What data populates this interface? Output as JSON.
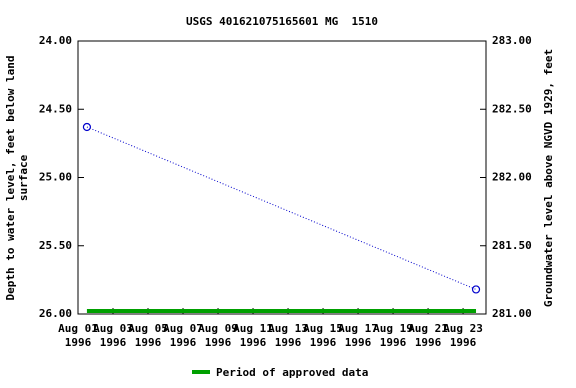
{
  "chart_data": {
    "type": "line",
    "title": "USGS 401621075165601 MG  1510",
    "ylabel": "Depth to water level, feet below land\nsurface",
    "y2label": "Groundwater level above NGVD 1929, feet",
    "x": [
      1.51,
      23.74
    ],
    "series": [
      {
        "name": "Depth to water level",
        "color": "#0000cc",
        "values": [
          24.63,
          25.82
        ]
      }
    ],
    "approved": {
      "name": "Period of approved data",
      "color": "#00a000",
      "x": [
        1.51,
        23.74
      ]
    },
    "xlim": [
      1,
      24.31
    ],
    "xticks": [
      {
        "value": 1,
        "label": "Aug 01\n1996"
      },
      {
        "value": 3,
        "label": "Aug 03\n1996"
      },
      {
        "value": 5,
        "label": "Aug 05\n1996"
      },
      {
        "value": 7,
        "label": "Aug 07\n1996"
      },
      {
        "value": 9,
        "label": "Aug 09\n1996"
      },
      {
        "value": 11,
        "label": "Aug 11\n1996"
      },
      {
        "value": 13,
        "label": "Aug 13\n1996"
      },
      {
        "value": 15,
        "label": "Aug 15\n1996"
      },
      {
        "value": 17,
        "label": "Aug 17\n1996"
      },
      {
        "value": 19,
        "label": "Aug 19\n1996"
      },
      {
        "value": 21,
        "label": "Aug 21\n1996"
      },
      {
        "value": 23,
        "label": "Aug 23\n1996"
      }
    ],
    "ylim": [
      24,
      26
    ],
    "y_inverted": true,
    "yticks": [
      {
        "value": 24,
        "label": "24.00"
      },
      {
        "value": 24.5,
        "label": "24.50"
      },
      {
        "value": 25,
        "label": "25.00"
      },
      {
        "value": 25.5,
        "label": "25.50"
      },
      {
        "value": 26,
        "label": "26.00"
      }
    ],
    "y2lim": [
      281,
      283
    ],
    "y2ticks": [
      {
        "value": 283,
        "label": "283.00"
      },
      {
        "value": 282.5,
        "label": "282.50"
      },
      {
        "value": 282,
        "label": "282.00"
      },
      {
        "value": 281.5,
        "label": "281.50"
      },
      {
        "value": 281,
        "label": "281.00"
      }
    ]
  }
}
